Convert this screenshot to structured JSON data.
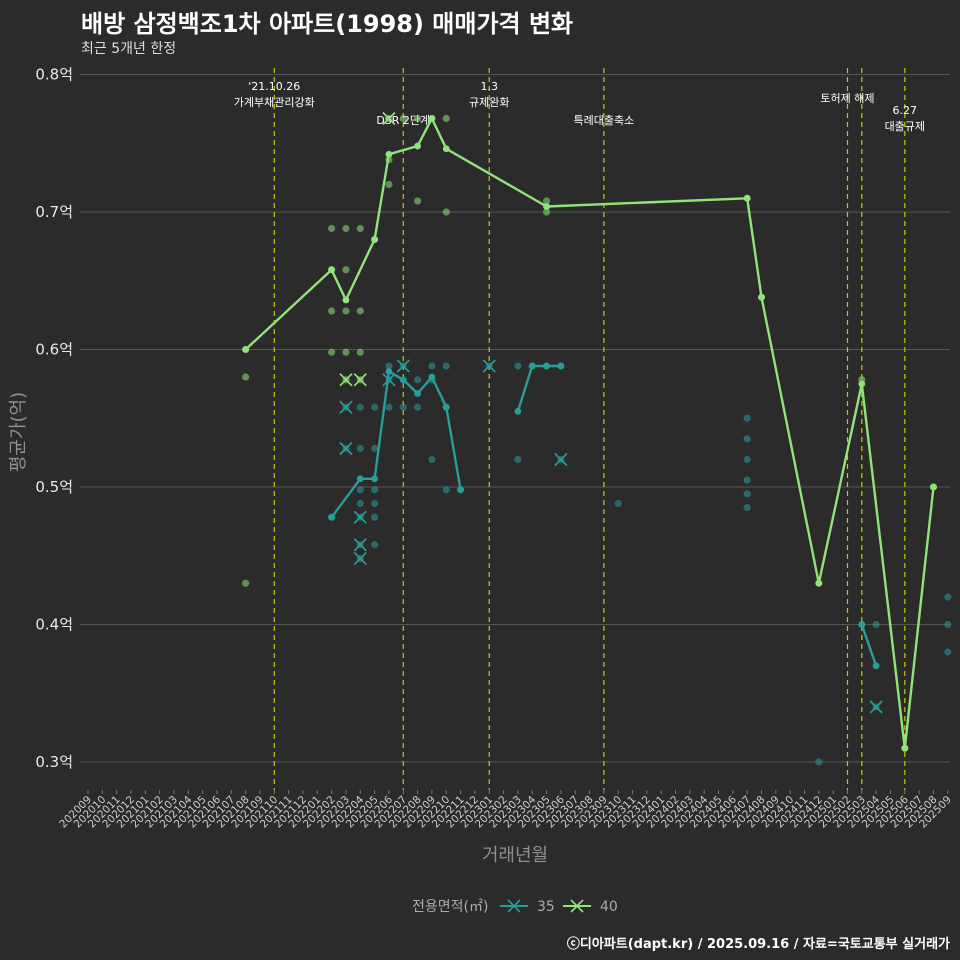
{
  "title": "배방 삼정백조1차 아파트(1998) 매매가격 변화",
  "subtitle": "최근 5개년 한정",
  "caption": "ⓒ디아파트(dapt.kr) / 2025.09.16 / 자료=국토교통부 실거래가",
  "colors": {
    "background": "#2b2b2b",
    "grid": "#555555",
    "vline": "#c8c800",
    "series35": "#2a9d9a",
    "series40": "#90e47a"
  },
  "chart_data": {
    "type": "line",
    "xlabel": "거래년월",
    "ylabel": "평균가(억)",
    "ylim": [
      0.28,
      0.81
    ],
    "yticks": [
      0.3,
      0.4,
      0.5,
      0.6,
      0.7,
      0.8
    ],
    "ytick_labels": [
      "0.3억",
      "0.4억",
      "0.5억",
      "0.6억",
      "0.7억",
      "0.8억"
    ],
    "x_categories": [
      "202009",
      "202010",
      "202011",
      "202012",
      "202101",
      "202102",
      "202103",
      "202104",
      "202105",
      "202106",
      "202107",
      "202108",
      "202109",
      "202110",
      "202111",
      "202112",
      "202201",
      "202202",
      "202203",
      "202204",
      "202205",
      "202206",
      "202207",
      "202208",
      "202209",
      "202210",
      "202211",
      "202212",
      "202301",
      "202302",
      "202303",
      "202304",
      "202305",
      "202306",
      "202307",
      "202308",
      "202309",
      "202310",
      "202311",
      "202312",
      "202401",
      "202402",
      "202403",
      "202404",
      "202405",
      "202406",
      "202407",
      "202408",
      "202409",
      "202410",
      "202411",
      "202412",
      "202501",
      "202502",
      "202503",
      "202504",
      "202505",
      "202506",
      "202507",
      "202508",
      "202509"
    ],
    "legend": {
      "title": "전용면적(㎡)",
      "placement": "bottom",
      "entries": [
        "35",
        "40"
      ]
    },
    "annotations": [
      {
        "x": "202110",
        "lines": [
          "'21.10.26",
          "가계부채관리강화"
        ],
        "row": 0
      },
      {
        "x": "202207",
        "lines": [
          "DSR 2단계"
        ],
        "row": 1
      },
      {
        "x": "202301",
        "lines": [
          "1.3",
          "규제완화"
        ],
        "row": 0
      },
      {
        "x": "202309",
        "lines": [
          "특례대출축소"
        ],
        "row": 1
      },
      {
        "x": "202502",
        "lines": [
          "토허제 해제"
        ],
        "row": 0
      },
      {
        "x": "202503",
        "lines": [],
        "row": 0
      },
      {
        "x": "202506",
        "lines": [
          "6.27",
          "대출규제"
        ],
        "row": 2
      }
    ],
    "series": [
      {
        "name": "35",
        "line": [
          [
            [
              "202202",
              0.478
            ],
            [
              "202204",
              0.506
            ],
            [
              "202205",
              0.506
            ],
            [
              "202206",
              0.584
            ],
            [
              "202207",
              0.578
            ],
            [
              "202208",
              0.568
            ],
            [
              "202209",
              0.58
            ],
            [
              "202210",
              0.558
            ],
            [
              "202211",
              0.498
            ]
          ],
          [
            [
              "202303",
              0.555
            ],
            [
              "202304",
              0.588
            ],
            [
              "202305",
              0.588
            ],
            [
              "202306",
              0.588
            ]
          ],
          [
            [
              "202503",
              0.4
            ],
            [
              "202504",
              0.37
            ]
          ]
        ],
        "points": [
          [
            "202202",
            0.478
          ],
          [
            "202203",
            0.558
          ],
          [
            "202203",
            0.528
          ],
          [
            "202204",
            0.558
          ],
          [
            "202204",
            0.528
          ],
          [
            "202204",
            0.498
          ],
          [
            "202204",
            0.488
          ],
          [
            "202204",
            0.478
          ],
          [
            "202204",
            0.458
          ],
          [
            "202204",
            0.448
          ],
          [
            "202205",
            0.558
          ],
          [
            "202205",
            0.528
          ],
          [
            "202205",
            0.498
          ],
          [
            "202205",
            0.488
          ],
          [
            "202205",
            0.478
          ],
          [
            "202205",
            0.458
          ],
          [
            "202206",
            0.588
          ],
          [
            "202206",
            0.578
          ],
          [
            "202206",
            0.558
          ],
          [
            "202207",
            0.588
          ],
          [
            "202207",
            0.558
          ],
          [
            "202208",
            0.578
          ],
          [
            "202208",
            0.558
          ],
          [
            "202209",
            0.588
          ],
          [
            "202209",
            0.578
          ],
          [
            "202209",
            0.52
          ],
          [
            "202210",
            0.588
          ],
          [
            "202210",
            0.558
          ],
          [
            "202210",
            0.498
          ],
          [
            "202211",
            0.498
          ],
          [
            "202301",
            0.588
          ],
          [
            "202303",
            0.588
          ],
          [
            "202303",
            0.52
          ],
          [
            "202304",
            0.588
          ],
          [
            "202305",
            0.588
          ],
          [
            "202306",
            0.588
          ],
          [
            "202306",
            0.52
          ],
          [
            "202310",
            0.488
          ],
          [
            "202407",
            0.55
          ],
          [
            "202407",
            0.535
          ],
          [
            "202407",
            0.52
          ],
          [
            "202407",
            0.505
          ],
          [
            "202407",
            0.495
          ],
          [
            "202407",
            0.485
          ],
          [
            "202412",
            0.3
          ],
          [
            "202503",
            0.4
          ],
          [
            "202504",
            0.4
          ],
          [
            "202504",
            0.34
          ],
          [
            "202509",
            0.42
          ],
          [
            "202509",
            0.4
          ],
          [
            "202509",
            0.38
          ]
        ],
        "x_marks": [
          [
            "202203",
            0.558
          ],
          [
            "202203",
            0.528
          ],
          [
            "202204",
            0.478
          ],
          [
            "202204",
            0.458
          ],
          [
            "202204",
            0.448
          ],
          [
            "202206",
            0.578
          ],
          [
            "202207",
            0.588
          ],
          [
            "202301",
            0.588
          ],
          [
            "202306",
            0.52
          ],
          [
            "202504",
            0.34
          ]
        ]
      },
      {
        "name": "40",
        "line": [
          [
            [
              "202108",
              0.6
            ],
            [
              "202202",
              0.658
            ],
            [
              "202203",
              0.636
            ],
            [
              "202205",
              0.68
            ],
            [
              "202206",
              0.742
            ],
            [
              "202208",
              0.748
            ],
            [
              "202209",
              0.768
            ],
            [
              "202210",
              0.746
            ],
            [
              "202305",
              0.704
            ],
            [
              "202407",
              0.71
            ],
            [
              "202408",
              0.638
            ],
            [
              "202412",
              0.43
            ],
            [
              "202503",
              0.575
            ],
            [
              "202506",
              0.31
            ],
            [
              "202508",
              0.5
            ]
          ]
        ],
        "points": [
          [
            "202108",
            0.6
          ],
          [
            "202108",
            0.58
          ],
          [
            "202108",
            0.43
          ],
          [
            "202202",
            0.688
          ],
          [
            "202202",
            0.658
          ],
          [
            "202202",
            0.628
          ],
          [
            "202202",
            0.598
          ],
          [
            "202203",
            0.688
          ],
          [
            "202203",
            0.658
          ],
          [
            "202203",
            0.628
          ],
          [
            "202203",
            0.598
          ],
          [
            "202203",
            0.578
          ],
          [
            "202204",
            0.688
          ],
          [
            "202204",
            0.628
          ],
          [
            "202204",
            0.598
          ],
          [
            "202204",
            0.578
          ],
          [
            "202205",
            0.68
          ],
          [
            "202206",
            0.738
          ],
          [
            "202206",
            0.72
          ],
          [
            "202206",
            0.768
          ],
          [
            "202207",
            0.768
          ],
          [
            "202208",
            0.708
          ],
          [
            "202208",
            0.768
          ],
          [
            "202209",
            0.768
          ],
          [
            "202210",
            0.768
          ],
          [
            "202210",
            0.7
          ],
          [
            "202305",
            0.708
          ],
          [
            "202305",
            0.7
          ],
          [
            "202407",
            0.71
          ],
          [
            "202408",
            0.638
          ],
          [
            "202412",
            0.43
          ],
          [
            "202503",
            0.578
          ],
          [
            "202506",
            0.31
          ],
          [
            "202508",
            0.5
          ]
        ],
        "x_marks": [
          [
            "202203",
            0.578
          ],
          [
            "202204",
            0.578
          ],
          [
            "202206",
            0.768
          ]
        ]
      }
    ]
  }
}
